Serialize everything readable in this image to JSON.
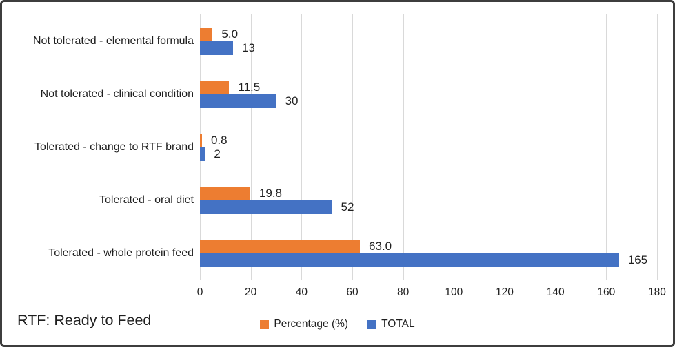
{
  "figure": {
    "footnote": "RTF: Ready to Feed"
  },
  "colors": {
    "orange_series": "#ED7D31",
    "blue_series": "#4472C4",
    "gridline": "#D9D9D9",
    "text": "#1F1F1F",
    "border": "#3D3D3D",
    "background": "#FFFFFF"
  },
  "chart_data": {
    "type": "bar",
    "orientation": "horizontal",
    "title": "",
    "xlabel": "",
    "ylabel": "",
    "categories": [
      "Not tolerated - elemental formula",
      "Not tolerated - clinical condition",
      "Tolerated - change to RTF brand",
      "Tolerated - oral diet",
      "Tolerated - whole protein feed"
    ],
    "series": [
      {
        "name": "Percentage (%)",
        "color": "#ED7D31",
        "values": [
          5.0,
          11.5,
          0.8,
          19.8,
          63.0
        ],
        "labels": [
          "5.0",
          "11.5",
          "0.8",
          "19.8",
          "63.0"
        ]
      },
      {
        "name": "TOTAL",
        "color": "#4472C4",
        "values": [
          13,
          30,
          2,
          52,
          165
        ],
        "labels": [
          "13",
          "30",
          "2",
          "52",
          "165"
        ]
      }
    ],
    "xlim": [
      0,
      180
    ],
    "xticks": [
      0,
      20,
      40,
      60,
      80,
      100,
      120,
      140,
      160,
      180
    ],
    "grid": true,
    "legend_position": "bottom",
    "footnote": "RTF: Ready to Feed"
  }
}
